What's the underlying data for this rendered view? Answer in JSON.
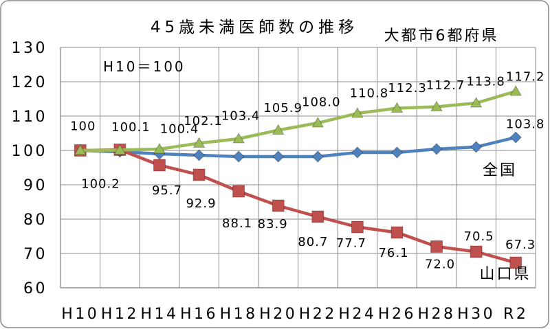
{
  "chart_data": {
    "type": "line",
    "title": "45歳未満医師数の推移",
    "annotation": "H10＝100",
    "categories": [
      "H10",
      "H12",
      "H14",
      "H16",
      "H18",
      "H20",
      "H22",
      "H24",
      "H26",
      "H28",
      "H30",
      "R2"
    ],
    "y_ticks": [
      60,
      70,
      80,
      90,
      100,
      110,
      120,
      130
    ],
    "ylim": [
      60,
      130
    ],
    "grid": true,
    "series": [
      {
        "name": "全国",
        "color": "#4F81BD",
        "marker": "diamond",
        "values": [
          100,
          99.6,
          99.0,
          98.6,
          98.2,
          98.2,
          98.2,
          99.4,
          99.4,
          100.4,
          101.0,
          103.8
        ],
        "labels": [
          null,
          null,
          null,
          null,
          null,
          null,
          null,
          null,
          null,
          null,
          null,
          "103.8"
        ]
      },
      {
        "name": "山口県",
        "color": "#C0504D",
        "marker": "square",
        "values": [
          100,
          100.2,
          95.7,
          92.9,
          88.1,
          83.9,
          80.7,
          77.7,
          76.1,
          72.0,
          70.5,
          67.3
        ],
        "labels": [
          null,
          "100.2",
          "95.7",
          "92.9",
          "88.1",
          "83.9",
          "80.7",
          "77.7",
          "76.1",
          "72.0",
          "70.5",
          "67.3"
        ]
      },
      {
        "name": "大都市6都府県",
        "color": "#9BBB59",
        "marker": "triangle",
        "values": [
          100,
          100.1,
          100.4,
          102.1,
          103.4,
          105.9,
          108.0,
          110.8,
          112.3,
          112.7,
          113.8,
          117.2
        ],
        "labels": [
          "100",
          "100.1",
          "100.4",
          "102.1",
          "103.4",
          "105.9",
          "108.0",
          "110.8",
          "112.3",
          "112.7",
          "113.8",
          "117.2"
        ]
      }
    ]
  }
}
